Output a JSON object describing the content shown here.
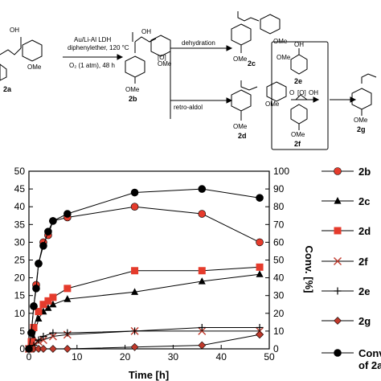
{
  "scheme": {
    "reagents": [
      "Au/Li-Al LDH",
      "diphenylether, 120 °C",
      "O₂ (1 atm), 48 h"
    ],
    "labels": {
      "dehydration": "dehydration",
      "retro_aldol": "retro-aldol",
      "oxidant": "[O]"
    },
    "groups": {
      "oh": "OH",
      "ome": "OMe",
      "o": "O",
      "oh_ring": "OH"
    },
    "compounds": [
      "2a",
      "2b",
      "2c",
      "2d",
      "2e",
      "2f",
      "2g"
    ]
  },
  "chart_data": {
    "type": "line",
    "xlabel": "Time [h]",
    "ylabel_right": "Conv. [%]",
    "xlim": [
      0,
      50
    ],
    "ylim_left": [
      0,
      50
    ],
    "ylim_right": [
      0,
      100
    ],
    "x_ticks": [
      "0",
      "10",
      "20",
      "30",
      "40",
      "50"
    ],
    "y_left_ticks": [
      "0",
      "5",
      "10",
      "15",
      "20",
      "25",
      "30",
      "35",
      "40",
      "45",
      "50"
    ],
    "y_right_ticks": [
      "0",
      "10",
      "20",
      "30",
      "40",
      "50",
      "60",
      "70",
      "80",
      "90",
      "100"
    ],
    "legend_position": "right",
    "series": [
      {
        "name": "2b",
        "axis": "left",
        "marker": "circle",
        "color": "#e53b2c",
        "x": [
          0,
          0.5,
          1,
          1.5,
          2,
          3,
          4,
          5,
          8,
          22,
          36,
          48
        ],
        "y": [
          0,
          4.5,
          12,
          18,
          24,
          30,
          32,
          36,
          37,
          40,
          38,
          30
        ]
      },
      {
        "name": "2c",
        "axis": "left",
        "marker": "triangle",
        "color": "#000000",
        "x": [
          0,
          0.5,
          1,
          2,
          3,
          4,
          5,
          8,
          22,
          36,
          48
        ],
        "y": [
          0,
          1,
          3,
          8.5,
          10.5,
          11.5,
          12.5,
          14,
          16,
          19,
          21
        ]
      },
      {
        "name": "2d",
        "axis": "left",
        "marker": "square",
        "color": "#e53b2c",
        "x": [
          0,
          0.5,
          1,
          2,
          3,
          4,
          5,
          8,
          22,
          36,
          48
        ],
        "y": [
          0,
          2,
          6,
          10.5,
          12.5,
          13.5,
          14.5,
          17,
          22,
          22,
          23
        ]
      },
      {
        "name": "2f",
        "axis": "left",
        "marker": "x",
        "color": "#c0392b",
        "x": [
          0,
          1,
          2,
          3,
          5,
          8,
          22,
          36,
          48
        ],
        "y": [
          0,
          1,
          2,
          2.5,
          3.5,
          4,
          5,
          5,
          5
        ]
      },
      {
        "name": "2e",
        "axis": "left",
        "marker": "plus",
        "color": "#000000",
        "x": [
          0,
          1,
          2,
          3,
          5,
          8,
          22,
          36,
          48
        ],
        "y": [
          0,
          1,
          2.5,
          3.5,
          4.5,
          4.5,
          5,
          6,
          6
        ]
      },
      {
        "name": "2g",
        "axis": "left",
        "marker": "diamond",
        "color": "#c0392b",
        "x": [
          0,
          1,
          2,
          3,
          5,
          8,
          22,
          36,
          48
        ],
        "y": [
          0,
          0,
          0,
          0,
          0,
          0,
          0.5,
          1,
          4
        ]
      },
      {
        "name": "Conv. of 2a",
        "axis": "right",
        "marker": "circle",
        "color": "#000000",
        "x": [
          0,
          0.5,
          1,
          1.5,
          2,
          3,
          4,
          5,
          8,
          22,
          36,
          48
        ],
        "y": [
          0,
          9,
          24,
          34,
          48,
          58,
          66,
          72,
          76,
          88,
          90,
          85
        ]
      }
    ]
  }
}
